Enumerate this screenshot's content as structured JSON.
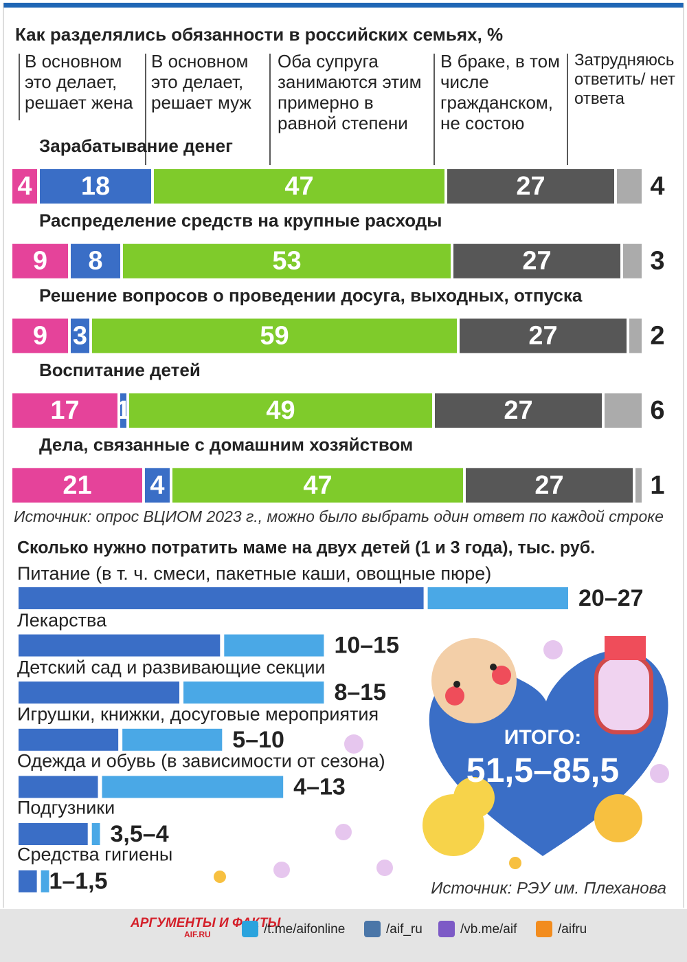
{
  "chart_data": [
    {
      "type": "stacked-bar",
      "title": "Как разделялись обязанности в российских семьях, %",
      "categories": [
        "Зарабатывание денег",
        "Распределение средств на крупные расходы",
        "Решение вопросов о проведении досуга, выходных, отпуска",
        "Воспитание детей",
        "Дела, связанные с домашним хозяйством"
      ],
      "series": [
        {
          "name": "В основном это делает, решает жена",
          "color": "#e5439a",
          "values": [
            4,
            9,
            9,
            17,
            21
          ]
        },
        {
          "name": "В основном это делает, решает муж",
          "color": "#3a6ec6",
          "values": [
            18,
            8,
            3,
            1,
            4
          ]
        },
        {
          "name": "Оба супруга занимаются этим примерно в равной степени",
          "color": "#7fcb2b",
          "values": [
            47,
            53,
            59,
            49,
            47
          ]
        },
        {
          "name": "В браке, в том числе гражданском, не состою",
          "color": "#575757",
          "values": [
            27,
            27,
            27,
            27,
            27
          ]
        },
        {
          "name": "Затрудняюсь ответить/ нет ответа",
          "color": "#ababab",
          "values": [
            4,
            3,
            2,
            6,
            1
          ]
        }
      ],
      "source": "Источник: опрос ВЦИОМ 2023 г., можно было выбрать один ответ по каждой строке"
    },
    {
      "type": "range-bar",
      "title": "Сколько нужно потратить маме на двух детей (1 и 3 года), тыс. руб.",
      "categories": [
        "Питание (в т. ч. смеси, пакетные каши, овощные пюре)",
        "Лекарства",
        "Детский сад и развивающие секции",
        "Игрушки, книжки, досуговые мероприятия",
        "Одежда и обувь (в зависимости от сезона)",
        "Подгузники",
        "Средства гигиены"
      ],
      "series": [
        {
          "color": "#3a6ec6",
          "values": [
            20,
            10,
            8,
            5,
            4,
            3.5,
            1
          ]
        },
        {
          "color": "#4aa8e6",
          "values": [
            27,
            15,
            15,
            10,
            13,
            4,
            1.5
          ]
        }
      ],
      "value_labels": [
        "20–27",
        "10–15",
        "8–15",
        "5–10",
        "4–13",
        "3,5–4",
        "1–1,5"
      ],
      "total_label": "ИТОГО:",
      "total": "51,5–85,5",
      "source": "Источник: РЭУ им. Плеханова"
    }
  ],
  "footer": {
    "logo": "АРГУМЕНТЫ И ФАКТЫ",
    "logo_site": "AIF.RU",
    "links": [
      "/t.me/aifonline",
      "/aif_ru",
      "/vb.me/aif",
      "/aifru"
    ]
  }
}
